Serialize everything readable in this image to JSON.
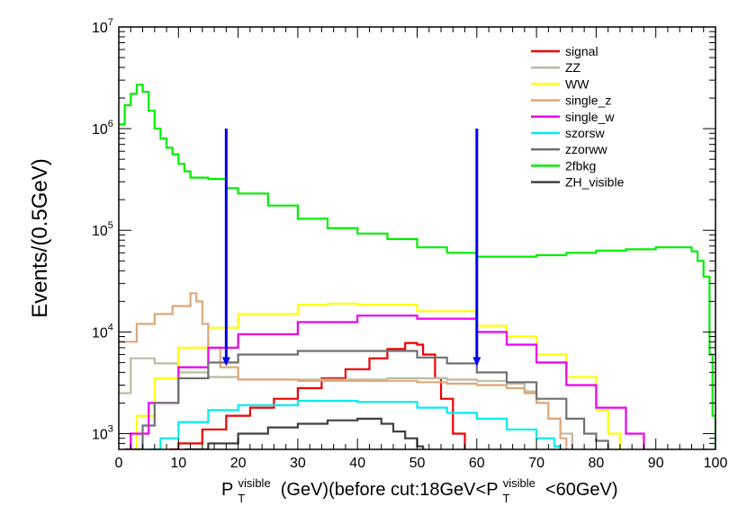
{
  "chart_data": {
    "type": "line",
    "style": "step histogram",
    "xlabel": {
      "base": "P",
      "sub": "T",
      "sup": "visible",
      "middle": "(GeV)(before cut:18GeV<P",
      "sub2": "T",
      "sup2": "visible",
      "end": "<60GeV)"
    },
    "ylabel": "Events/(0.5GeV)",
    "x_range": [
      0,
      100
    ],
    "y_range": [
      700,
      10000000
    ],
    "y_scale": "log",
    "x_ticks": [
      "0",
      "10",
      "20",
      "30",
      "40",
      "50",
      "60",
      "70",
      "80",
      "90",
      "100"
    ],
    "y_ticks": [
      {
        "base": "10",
        "exp": "3"
      },
      {
        "base": "10",
        "exp": "4"
      },
      {
        "base": "10",
        "exp": "5"
      },
      {
        "base": "10",
        "exp": "6"
      },
      {
        "base": "10",
        "exp": "7"
      }
    ],
    "legend_position": "top-right",
    "cut_markers": [
      {
        "x": 18,
        "y_top": 1000000,
        "y_bottom": 4800,
        "color": "#0000ee"
      },
      {
        "x": 60,
        "y_top": 1000000,
        "y_bottom": 4800,
        "color": "#0000ee"
      }
    ],
    "series": [
      {
        "name": "signal",
        "color": "#ee0000",
        "points": [
          [
            8.5,
            700
          ],
          [
            10,
            800
          ],
          [
            14,
            1100
          ],
          [
            18,
            1500
          ],
          [
            22,
            1800
          ],
          [
            26,
            2200
          ],
          [
            30,
            2800
          ],
          [
            34,
            3500
          ],
          [
            38,
            4300
          ],
          [
            42,
            5500
          ],
          [
            45,
            6800
          ],
          [
            48,
            7800
          ],
          [
            50,
            7500
          ],
          [
            51,
            6000
          ],
          [
            53,
            3500
          ],
          [
            54,
            2200
          ],
          [
            56,
            1000
          ],
          [
            58,
            700
          ]
        ]
      },
      {
        "name": "ZZ",
        "color": "#bbbba0",
        "points": [
          [
            0,
            2500
          ],
          [
            2,
            5500
          ],
          [
            4,
            5500
          ],
          [
            6,
            4900
          ],
          [
            10,
            4000
          ],
          [
            15,
            3600
          ],
          [
            20,
            3400
          ],
          [
            30,
            3400
          ],
          [
            40,
            3400
          ],
          [
            45,
            3500
          ],
          [
            50,
            3500
          ],
          [
            55,
            3400
          ],
          [
            60,
            3300
          ],
          [
            65,
            3100
          ],
          [
            68,
            2600
          ],
          [
            70,
            2000
          ],
          [
            72,
            1400
          ],
          [
            74,
            1000
          ],
          [
            76,
            700
          ]
        ]
      },
      {
        "name": "WW",
        "color": "#ffff00",
        "points": [
          [
            1,
            700
          ],
          [
            3,
            1500
          ],
          [
            6,
            3500
          ],
          [
            10,
            7000
          ],
          [
            15,
            11000
          ],
          [
            20,
            15000
          ],
          [
            30,
            18500
          ],
          [
            35,
            19000
          ],
          [
            40,
            18500
          ],
          [
            50,
            16000
          ],
          [
            60,
            11500
          ],
          [
            65,
            9000
          ],
          [
            70,
            6000
          ],
          [
            75,
            3600
          ],
          [
            80,
            1700
          ],
          [
            82,
            1000
          ],
          [
            84,
            700
          ]
        ]
      },
      {
        "name": "single_z",
        "color": "#dda877",
        "points": [
          [
            0,
            8000
          ],
          [
            3,
            12000
          ],
          [
            6,
            15000
          ],
          [
            9,
            18000
          ],
          [
            12,
            24000
          ],
          [
            13,
            20000
          ],
          [
            14,
            12000
          ],
          [
            15,
            7000
          ],
          [
            17,
            4500
          ],
          [
            20,
            3400
          ],
          [
            30,
            3300
          ],
          [
            40,
            3300
          ],
          [
            50,
            3200
          ],
          [
            55,
            3100
          ],
          [
            60,
            3000
          ],
          [
            65,
            2800
          ],
          [
            68,
            2500
          ],
          [
            70,
            2000
          ],
          [
            72,
            1400
          ],
          [
            74,
            900
          ],
          [
            75,
            700
          ]
        ]
      },
      {
        "name": "single_w",
        "color": "#ee00ee",
        "points": [
          [
            1,
            700
          ],
          [
            2,
            1000
          ],
          [
            5,
            2000
          ],
          [
            10,
            4500
          ],
          [
            15,
            7000
          ],
          [
            20,
            9500
          ],
          [
            30,
            12500
          ],
          [
            40,
            14500
          ],
          [
            50,
            13500
          ],
          [
            60,
            10000
          ],
          [
            65,
            7500
          ],
          [
            70,
            5000
          ],
          [
            75,
            3000
          ],
          [
            80,
            1800
          ],
          [
            85,
            1000
          ],
          [
            88,
            700
          ]
        ]
      },
      {
        "name": "szorsw",
        "color": "#00eeee",
        "points": [
          [
            5,
            700
          ],
          [
            7,
            900
          ],
          [
            10,
            1300
          ],
          [
            15,
            1700
          ],
          [
            20,
            1900
          ],
          [
            30,
            2100
          ],
          [
            40,
            2050
          ],
          [
            50,
            1800
          ],
          [
            55,
            1600
          ],
          [
            60,
            1400
          ],
          [
            65,
            1100
          ],
          [
            70,
            900
          ],
          [
            73,
            750
          ],
          [
            74,
            700
          ]
        ]
      },
      {
        "name": "zzorww",
        "color": "#707070",
        "points": [
          [
            2,
            700
          ],
          [
            4,
            1200
          ],
          [
            6,
            2000
          ],
          [
            10,
            3500
          ],
          [
            15,
            5000
          ],
          [
            20,
            6000
          ],
          [
            30,
            6500
          ],
          [
            40,
            6500
          ],
          [
            50,
            5600
          ],
          [
            55,
            4900
          ],
          [
            60,
            4000
          ],
          [
            65,
            3200
          ],
          [
            70,
            2200
          ],
          [
            75,
            1400
          ],
          [
            78,
            1000
          ],
          [
            80,
            850
          ],
          [
            82,
            700
          ]
        ]
      },
      {
        "name": "2fbkg",
        "color": "#00ee00",
        "points": [
          [
            0,
            1100000
          ],
          [
            1,
            1700000
          ],
          [
            2,
            2200000
          ],
          [
            3,
            2700000
          ],
          [
            4,
            2300000
          ],
          [
            5,
            1500000
          ],
          [
            6,
            1000000
          ],
          [
            7,
            800000
          ],
          [
            8,
            650000
          ],
          [
            9,
            560000
          ],
          [
            10,
            450000
          ],
          [
            11,
            380000
          ],
          [
            12,
            330000
          ],
          [
            15,
            320000
          ],
          [
            18,
            260000
          ],
          [
            20,
            230000
          ],
          [
            25,
            175000
          ],
          [
            30,
            130000
          ],
          [
            35,
            105000
          ],
          [
            40,
            93000
          ],
          [
            45,
            82000
          ],
          [
            50,
            68000
          ],
          [
            55,
            60000
          ],
          [
            60,
            55000
          ],
          [
            65,
            55000
          ],
          [
            70,
            57000
          ],
          [
            75,
            60000
          ],
          [
            80,
            63000
          ],
          [
            85,
            65000
          ],
          [
            90,
            68000
          ],
          [
            95,
            68000
          ],
          [
            96,
            62000
          ],
          [
            97,
            50000
          ],
          [
            98,
            35000
          ],
          [
            99,
            6000
          ],
          [
            99.5,
            1500
          ],
          [
            100,
            700
          ]
        ]
      },
      {
        "name": "ZH_visible",
        "color": "#404040",
        "points": [
          [
            11,
            700
          ],
          [
            15,
            800
          ],
          [
            20,
            1000
          ],
          [
            25,
            1150
          ],
          [
            30,
            1250
          ],
          [
            35,
            1350
          ],
          [
            40,
            1400
          ],
          [
            44,
            1250
          ],
          [
            46,
            1050
          ],
          [
            48,
            900
          ],
          [
            50,
            750
          ],
          [
            51,
            700
          ]
        ]
      }
    ]
  }
}
